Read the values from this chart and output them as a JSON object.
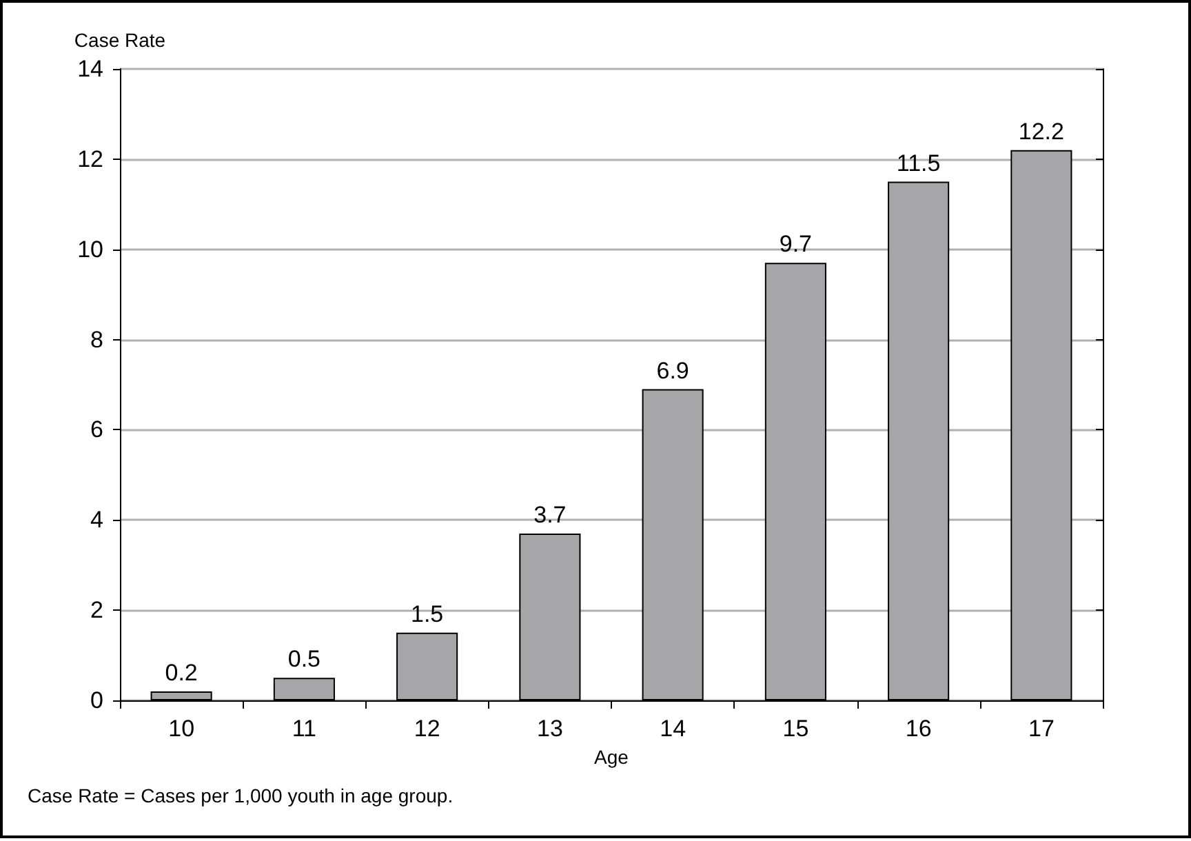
{
  "chart_data": {
    "type": "bar",
    "ylabel": "Case Rate",
    "xlabel": "Age",
    "categories": [
      "10",
      "11",
      "12",
      "13",
      "14",
      "15",
      "16",
      "17"
    ],
    "values": [
      0.2,
      0.5,
      1.5,
      3.7,
      6.9,
      9.7,
      11.5,
      12.2
    ],
    "color": "#a6a6a9",
    "ylim": [
      0,
      14
    ],
    "yticks": [
      0,
      2,
      4,
      6,
      8,
      10,
      12,
      14
    ],
    "grid": "y",
    "data_labels": true,
    "annotations": [
      "Case Rate = Cases per 1,000 youth in age group."
    ]
  }
}
